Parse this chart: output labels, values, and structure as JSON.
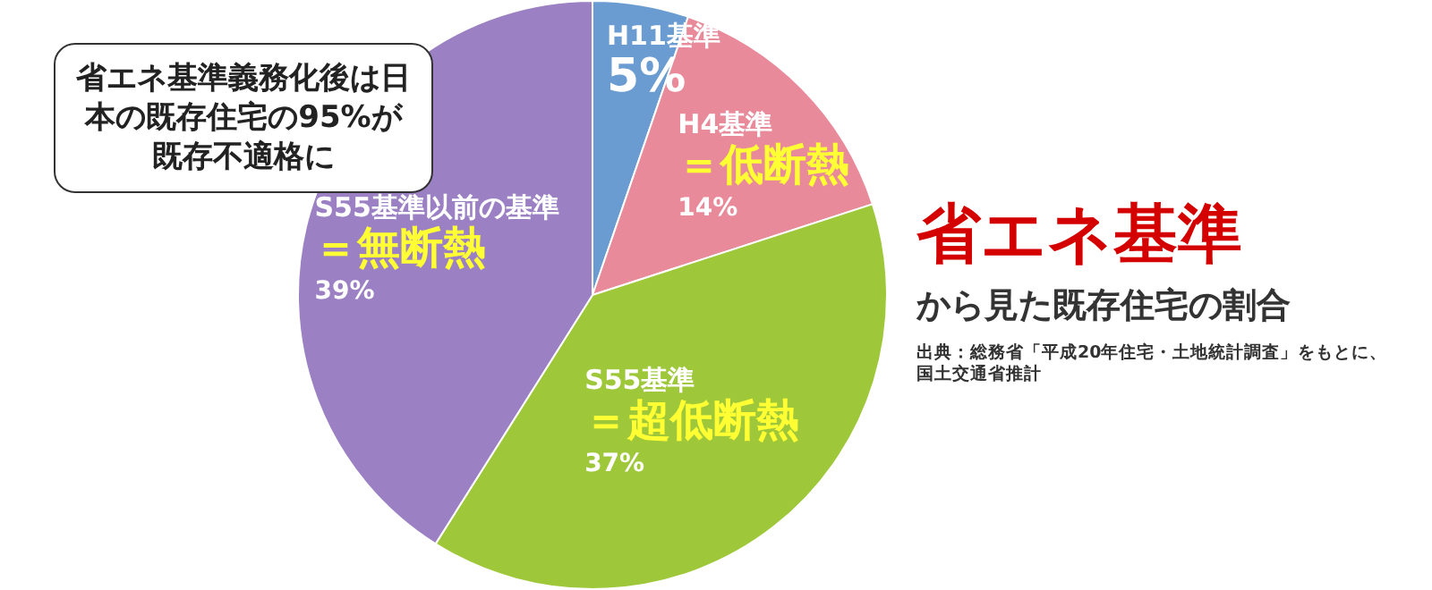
{
  "chart_data": {
    "type": "pie",
    "title": "省エネ基準",
    "subtitle": "から見た既存住宅の割合",
    "annotations": [
      "省エネ基準義務化後は日本の既存住宅の95%が既存不適格に",
      "出典：総務省「平成20年住宅・土地統計調査」をもとに、国土交通省推計"
    ],
    "categories": [
      "H11基準",
      "H4基準＝低断熱",
      "S55基準＝超低断熱",
      "S55基準以前の基準＝無断熱"
    ],
    "values": [
      5,
      14,
      37,
      39
    ],
    "value_labels": [
      "5%",
      "14%",
      "37%",
      "39%"
    ],
    "colors": [
      "#6a9bd1",
      "#e88a9a",
      "#9ec83a",
      "#9b80c4"
    ],
    "legend": false
  }
}
